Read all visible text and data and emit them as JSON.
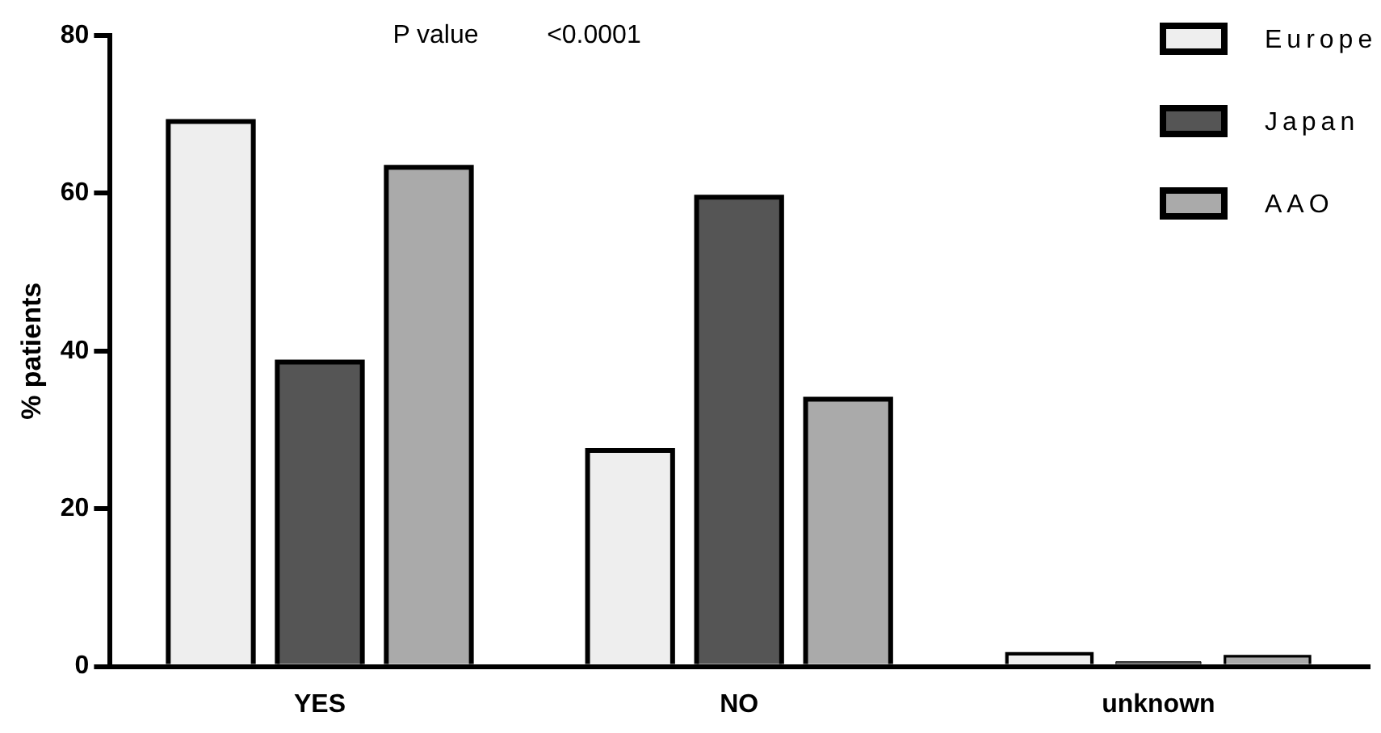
{
  "chart_data": {
    "type": "bar",
    "ylabel": "% patients",
    "categories": [
      "YES",
      "NO",
      "unknown"
    ],
    "series": [
      {
        "name": "Europe",
        "color": "#eeeeee",
        "values": [
          69.1,
          27.4,
          1.6
        ]
      },
      {
        "name": "Japan",
        "color": "#555555",
        "values": [
          38.6,
          59.5,
          0.6
        ]
      },
      {
        "name": "AAO",
        "color": "#aaaaaa",
        "values": [
          63.3,
          33.9,
          1.3
        ]
      }
    ],
    "ylim": [
      0,
      80
    ],
    "yticks": [
      0,
      20,
      40,
      60,
      80
    ],
    "grid": false,
    "legend": "top right",
    "annotations": [
      "P value",
      "<0.0001"
    ]
  }
}
